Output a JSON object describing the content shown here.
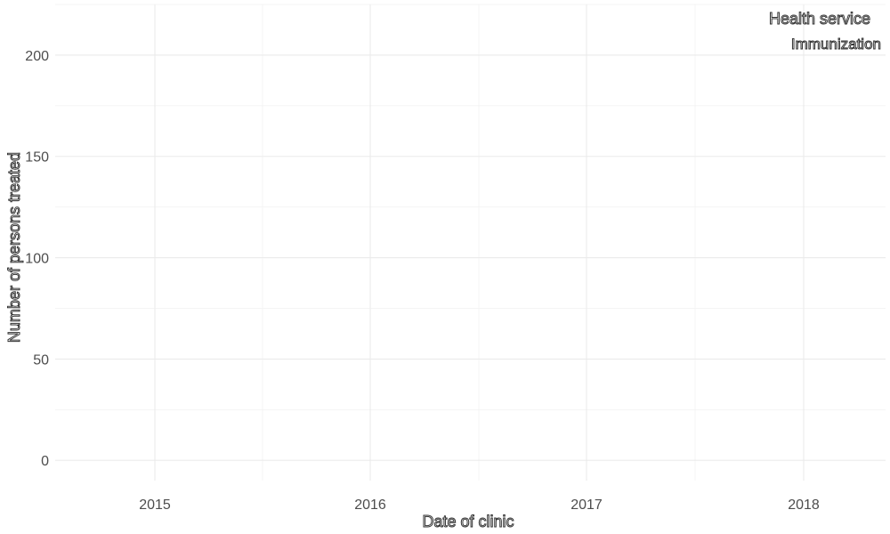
{
  "chart_data": {
    "type": "line",
    "title": "",
    "xlabel": "Date of clinic",
    "ylabel": "Number of persons treated",
    "x_ticks": [
      "2015",
      "2016",
      "2017",
      "2018"
    ],
    "y_ticks": [
      0,
      50,
      100,
      150,
      200
    ],
    "ylim": [
      -10,
      225
    ],
    "grid": true,
    "legend": {
      "title": "Health service",
      "position": "top-right",
      "entries": [
        "Immunization"
      ]
    },
    "series": [
      {
        "name": "Immunization",
        "color": "#ffffff",
        "points": []
      }
    ]
  }
}
